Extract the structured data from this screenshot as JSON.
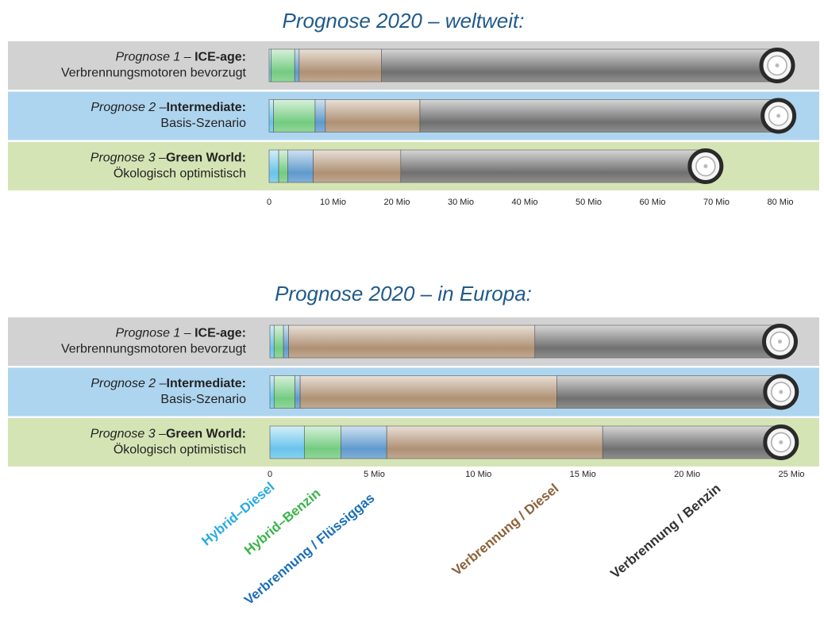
{
  "chart_data": [
    {
      "type": "bar",
      "orientation": "horizontal",
      "stacked": true,
      "title": "Prognose 2020 – weltweit:",
      "categories": [
        {
          "prefix": "Prognose 1 – ",
          "title": "ICE-age:",
          "description": "Verbrennungsmotoren bevorzugt"
        },
        {
          "prefix": "Prognose 2 –",
          "title": "Intermediate:",
          "description": "Basis-Szenario"
        },
        {
          "prefix": "Prognose 3 –",
          "title": "Green World:",
          "description": "Ökologisch optimistisch"
        }
      ],
      "series": [
        {
          "color": "#29abe2",
          "values": [
            0.3,
            0.7,
            1.5
          ]
        },
        {
          "color": "#39b54a",
          "values": [
            3.7,
            6.5,
            1.4
          ]
        },
        {
          "color": "#1b6fb7",
          "values": [
            0.7,
            1.6,
            4.0
          ]
        },
        {
          "color": "#8c6239",
          "values": [
            12.9,
            14.8,
            13.7
          ]
        },
        {
          "color": "#333333",
          "values": [
            62.4,
            56.6,
            48.2
          ]
        }
      ],
      "xlim": [
        0,
        80
      ],
      "xticks": [
        0,
        {
          "value": 10,
          "label": "10 Mio"
        },
        {
          "value": 20,
          "label": "20 Mio"
        },
        {
          "value": 30,
          "label": "30 Mio"
        },
        {
          "value": 40,
          "label": "40 Mio"
        },
        {
          "value": 50,
          "label": "50 Mio"
        },
        {
          "value": 60,
          "label": "60 Mio"
        },
        {
          "value": 70,
          "label": "70 Mio"
        },
        {
          "value": 80,
          "label": "80 Mio"
        }
      ]
    },
    {
      "type": "bar",
      "orientation": "horizontal",
      "stacked": true,
      "title": "Prognose 2020 – in Europa:",
      "categories": [
        {
          "prefix": "Prognose 1 – ",
          "title": "ICE-age:",
          "description": "Verbrennungsmotoren bevorzugt"
        },
        {
          "prefix": "Prognose 2 –",
          "title": "Intermediate:",
          "description": "Basis-Szenario"
        },
        {
          "prefix": "Prognose 3 –",
          "title": "Green World:",
          "description": "Ökologisch optimistisch"
        }
      ],
      "series": [
        {
          "name": "Hybrid–Diesel",
          "color": "#29abe2",
          "values": [
            0.2,
            0.2,
            1.65
          ]
        },
        {
          "name": "Hybrid–Benzin",
          "color": "#39b54a",
          "values": [
            0.45,
            1.0,
            1.75
          ]
        },
        {
          "name": "Verbrennung / Flüssiggas",
          "color": "#1b6fb7",
          "values": [
            0.25,
            0.25,
            2.2
          ]
        },
        {
          "name": "Verbrennung / Diesel",
          "color": "#8c6239",
          "values": [
            11.8,
            12.3,
            10.35
          ]
        },
        {
          "name": "Verbrennung / Benzin",
          "color": "#333333",
          "values": [
            11.9,
            10.9,
            8.7
          ]
        }
      ],
      "xlim": [
        0,
        25
      ],
      "xticks": [
        0,
        {
          "value": 5,
          "label": "5 Mio"
        },
        {
          "value": 10,
          "label": "10 Mio"
        },
        {
          "value": 15,
          "label": "15 Mio"
        },
        {
          "value": 20,
          "label": "20 Mio"
        },
        {
          "value": 25,
          "label": "25 Mio"
        }
      ]
    }
  ]
}
